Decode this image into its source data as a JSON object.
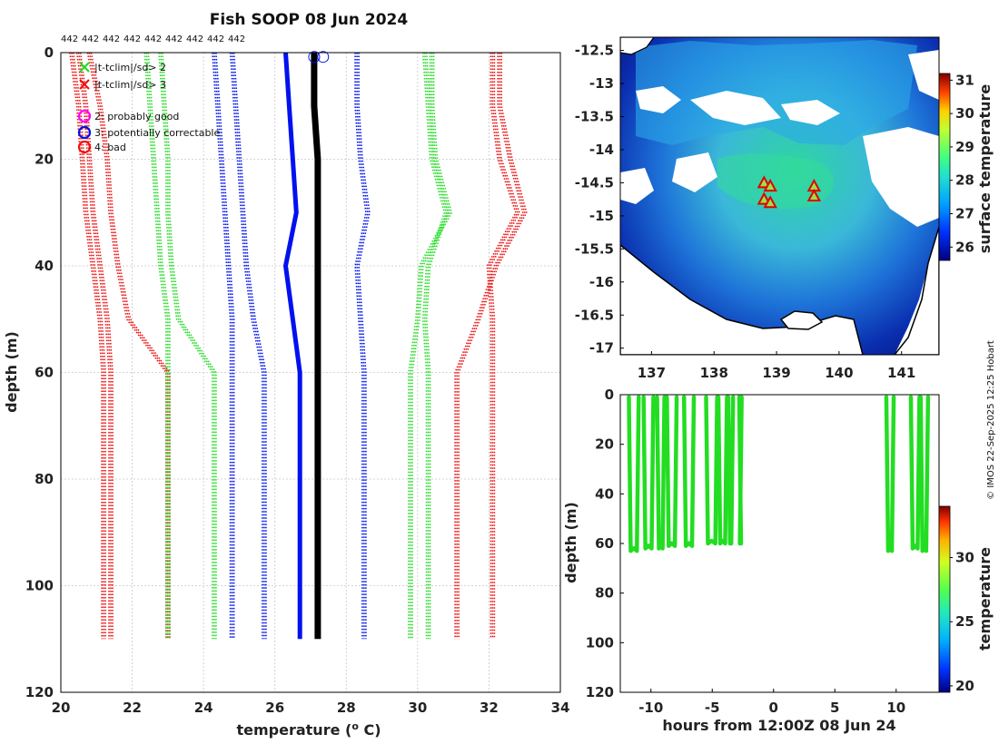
{
  "colors": {
    "red": "#ee1111",
    "green": "#22dd22",
    "blue": "#0011ee",
    "black": "#000000",
    "magenta": "#ff00ff",
    "grid": "#c8c8c8",
    "land": "#ffffff",
    "ocean_border": "#000000"
  },
  "chart_data": [
    {
      "type": "line",
      "name": "profile-panel",
      "title": "Fish SOOP 08 Jun 2024",
      "xlabel": "temperature (",
      "xlabel_sup": "o",
      "xlabel_end": " C)",
      "ylabel": "depth (m)",
      "xlim": [
        20,
        34
      ],
      "ylim": [
        0,
        120
      ],
      "xticks": [
        "20",
        "22",
        "24",
        "26",
        "28",
        "30",
        "32",
        "34"
      ],
      "yticks": [
        "0",
        "20",
        "40",
        "60",
        "80",
        "100",
        "120"
      ],
      "top_labels": [
        "442",
        "442",
        "442",
        "442",
        "442",
        "442",
        "442",
        "442",
        "442"
      ],
      "legend": [
        {
          "marker": "x",
          "color": "green",
          "label": "|t-tclim|/sd> 2"
        },
        {
          "marker": "x",
          "color": "red",
          "label": "|t-tclim|/sd> 3"
        },
        {
          "marker": "o",
          "color": "magenta",
          "label": "2: probably good"
        },
        {
          "marker": "o",
          "color": "blue",
          "label": "3: potentially correctable"
        },
        {
          "marker": "o",
          "color": "red",
          "label": "4: bad"
        }
      ],
      "depth_levels": [
        0,
        10,
        20,
        30,
        40,
        50,
        60,
        110
      ],
      "series": [
        {
          "name": "clim -3sd a",
          "color": "red",
          "style": "dotted",
          "values": [
            20.3,
            20.5,
            20.6,
            20.7,
            20.9,
            21.1,
            21.2,
            21.2
          ]
        },
        {
          "name": "clim -3sd b",
          "color": "red",
          "style": "dotted",
          "values": [
            20.5,
            20.7,
            20.8,
            20.9,
            21.1,
            21.3,
            21.4,
            21.4
          ]
        },
        {
          "name": "clim -3sd c",
          "color": "red",
          "style": "dotted",
          "values": [
            20.8,
            21.1,
            21.3,
            21.4,
            21.6,
            21.9,
            23.0,
            23.0
          ]
        },
        {
          "name": "clim -2sd a",
          "color": "green",
          "style": "dotted",
          "values": [
            22.4,
            22.5,
            22.6,
            22.7,
            22.8,
            23.0,
            23.0,
            23.0
          ]
        },
        {
          "name": "clim -2sd b",
          "color": "green",
          "style": "dotted",
          "values": [
            22.8,
            22.9,
            23.0,
            23.0,
            23.1,
            23.3,
            24.3,
            24.3
          ]
        },
        {
          "name": "clim -1sd a",
          "color": "blue",
          "style": "dotted",
          "values": [
            24.3,
            24.4,
            24.5,
            24.6,
            24.7,
            24.8,
            24.8,
            24.8
          ]
        },
        {
          "name": "clim -1sd b",
          "color": "blue",
          "style": "dotted",
          "values": [
            24.8,
            24.9,
            25.0,
            25.1,
            25.2,
            25.4,
            25.7,
            25.7
          ]
        },
        {
          "name": "clim mean",
          "color": "blue",
          "style": "solid",
          "values": [
            26.3,
            26.4,
            26.5,
            26.6,
            26.3,
            26.5,
            26.7,
            26.7
          ]
        },
        {
          "name": "observed",
          "color": "black",
          "style": "solid",
          "values": [
            27.1,
            27.1,
            27.2,
            27.2,
            27.2,
            27.2,
            27.2,
            27.2
          ]
        },
        {
          "name": "clim +1sd a",
          "color": "blue",
          "style": "dotted",
          "values": [
            28.3,
            28.3,
            28.4,
            28.6,
            28.3,
            28.4,
            28.5,
            28.5
          ]
        },
        {
          "name": "clim +2sd a",
          "color": "green",
          "style": "dotted",
          "values": [
            30.4,
            30.4,
            30.5,
            30.9,
            30.1,
            30.0,
            29.8,
            29.8
          ]
        },
        {
          "name": "clim +2sd b",
          "color": "green",
          "style": "dotted",
          "values": [
            30.2,
            30.3,
            30.4,
            30.8,
            30.3,
            30.2,
            30.3,
            30.3
          ]
        },
        {
          "name": "clim +3sd a",
          "color": "red",
          "style": "dotted",
          "values": [
            32.3,
            32.3,
            32.6,
            33.0,
            32.2,
            31.7,
            31.1,
            31.1
          ]
        },
        {
          "name": "clim +3sd b",
          "color": "red",
          "style": "dotted",
          "values": [
            32.1,
            32.1,
            32.3,
            32.8,
            32.0,
            32.1,
            32.1,
            32.1
          ]
        }
      ]
    },
    {
      "type": "heatmap",
      "name": "sst-map",
      "colorbar_label": "surface temperature",
      "xlim": [
        136.5,
        141.6
      ],
      "ylim": [
        -17.1,
        -12.3
      ],
      "xticks": [
        "137",
        "138",
        "139",
        "140",
        "141"
      ],
      "yticks": [
        "-12.5",
        "-13",
        "-13.5",
        "-14",
        "-14.5",
        "-15",
        "-15.5",
        "-16",
        "-16.5",
        "-17"
      ],
      "colorbar_ticks": [
        "26",
        "27",
        "28",
        "29",
        "30",
        "31"
      ],
      "colorbar_range": [
        25.6,
        31.2
      ],
      "stations": [
        {
          "lon": 138.8,
          "lat": -14.5
        },
        {
          "lon": 138.9,
          "lat": -14.55
        },
        {
          "lon": 138.8,
          "lat": -14.75
        },
        {
          "lon": 138.9,
          "lat": -14.8
        },
        {
          "lon": 139.6,
          "lat": -14.55
        },
        {
          "lon": 139.6,
          "lat": -14.7
        }
      ]
    },
    {
      "type": "scatter",
      "name": "depth-time",
      "xlabel": "hours from 12:00Z 08 Jun 24",
      "ylabel": "depth (m)",
      "xlim": [
        -12.5,
        13.5
      ],
      "ylim": [
        0,
        120
      ],
      "xticks": [
        "-10",
        "-5",
        "0",
        "5",
        "10"
      ],
      "yticks": [
        "0",
        "20",
        "40",
        "60",
        "80",
        "100",
        "120"
      ],
      "colorbar_label": "temperature",
      "colorbar_ticks": [
        "20",
        "25",
        "30"
      ],
      "colorbar_range": [
        19.5,
        34
      ],
      "casts": [
        {
          "t0": -11.8,
          "t1": -11.0,
          "bottom": 63
        },
        {
          "t0": -10.6,
          "t1": -9.8,
          "bottom": 62
        },
        {
          "t0": -9.5,
          "t1": -8.9,
          "bottom": 62
        },
        {
          "t0": -8.7,
          "t1": -7.9,
          "bottom": 61
        },
        {
          "t0": -7.3,
          "t1": -6.5,
          "bottom": 61
        },
        {
          "t0": -5.5,
          "t1": -4.6,
          "bottom": 60
        },
        {
          "t0": -4.5,
          "t1": -3.8,
          "bottom": 60
        },
        {
          "t0": -3.7,
          "t1": -3.3,
          "bottom": 60
        },
        {
          "t0": -2.8,
          "t1": -2.6,
          "bottom": 60
        },
        {
          "t0": 9.2,
          "t1": 9.8,
          "bottom": 63
        },
        {
          "t0": 11.2,
          "t1": 11.9,
          "bottom": 62
        },
        {
          "t0": 12.0,
          "t1": 12.6,
          "bottom": 63
        }
      ]
    }
  ],
  "footer": {
    "credit": "© IMOS 22-Sep-2025 12:25 Hobart"
  }
}
